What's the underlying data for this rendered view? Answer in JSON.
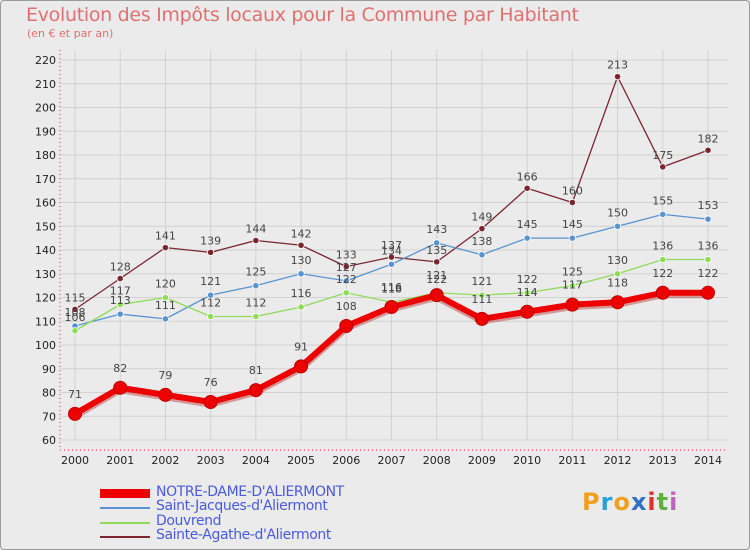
{
  "title": "Evolution des Impôts locaux pour la Commune par Habitant",
  "subtitle": "(en € et par an)",
  "logo": {
    "text": "Proxiti",
    "letters": [
      "P",
      "r",
      "o",
      "x",
      "i",
      "t",
      "i"
    ],
    "colors": [
      "#f0a020",
      "#2aa0d8",
      "#f0a020",
      "#3070c0",
      "#e03030",
      "#60b040",
      "#c060c0"
    ]
  },
  "chart_data": {
    "type": "line",
    "title": "Evolution des Impôts locaux pour la Commune par Habitant",
    "subtitle": "(en € et par an)",
    "xlabel": "",
    "ylabel": "",
    "x": [
      2000,
      2001,
      2002,
      2003,
      2004,
      2005,
      2006,
      2007,
      2008,
      2009,
      2010,
      2011,
      2012,
      2013,
      2014
    ],
    "yticks": [
      60,
      70,
      80,
      90,
      100,
      110,
      120,
      130,
      140,
      150,
      160,
      170,
      180,
      190,
      200,
      210,
      220
    ],
    "ylim": [
      60,
      220
    ],
    "grid": true,
    "legend_position": "bottom",
    "series": [
      {
        "name": "Sainte-Agathe-d'Aliermont",
        "color": "#7a2630",
        "values": [
          115,
          128,
          141,
          139,
          144,
          142,
          133,
          137,
          135,
          149,
          166,
          160,
          213,
          175,
          182
        ]
      },
      {
        "name": "Saint-Jacques-d'Aliermont",
        "color": "#5a94d0",
        "values": [
          108,
          113,
          111,
          121,
          125,
          130,
          127,
          134,
          143,
          138,
          145,
          145,
          150,
          155,
          153
        ]
      },
      {
        "name": "Douvrend",
        "color": "#8edc5a",
        "values": [
          106,
          117,
          120,
          112,
          112,
          116,
          122,
          118,
          122,
          121,
          122,
          125,
          130,
          136,
          136
        ]
      },
      {
        "name": "NOTRE-DAME-D'ALIERMONT",
        "color": "#ee0000",
        "values": [
          71,
          82,
          79,
          76,
          81,
          91,
          108,
          116,
          121,
          111,
          114,
          117,
          118,
          122,
          122
        ]
      }
    ],
    "legend_order": [
      "NOTRE-DAME-D'ALIERMONT",
      "Saint-Jacques-d'Aliermont",
      "Douvrend",
      "Sainte-Agathe-d'Aliermont"
    ]
  }
}
